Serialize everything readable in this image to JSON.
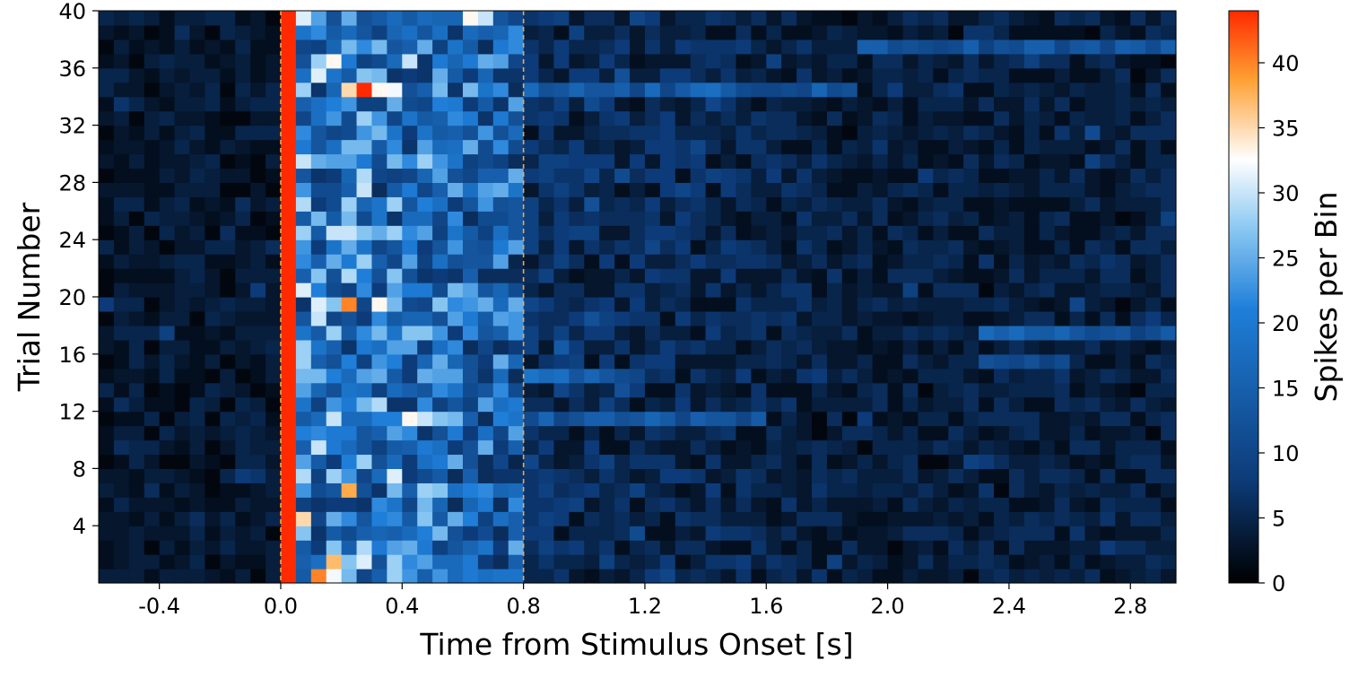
{
  "chart_data": {
    "type": "heatmap",
    "title": "",
    "xlabel": "Time from Stimulus Onset [s]",
    "ylabel": "Trial Number",
    "colorbar_label": "Spikes per Bin",
    "colormap": [
      "#000000",
      "#0d3b78",
      "#1f7fd9",
      "#8cc8f2",
      "#ffffff",
      "#ffa033",
      "#ff2a00"
    ],
    "xlim": [
      -0.6,
      2.95
    ],
    "ylim": [
      0,
      40
    ],
    "clim": [
      0,
      44
    ],
    "bin_width_s": 0.05,
    "n_trials": 40,
    "xticks": [
      -0.4,
      0.0,
      0.4,
      0.8,
      1.2,
      1.6,
      2.0,
      2.4,
      2.8
    ],
    "xtick_labels": [
      "-0.4",
      "0.0",
      "0.4",
      "0.8",
      "1.2",
      "1.6",
      "2.0",
      "2.4",
      "2.8"
    ],
    "yticks": [
      4,
      8,
      12,
      16,
      20,
      24,
      28,
      32,
      36,
      40
    ],
    "ytick_labels": [
      "4",
      "8",
      "12",
      "16",
      "20",
      "24",
      "28",
      "32",
      "36",
      "40"
    ],
    "cbar_ticks": [
      0,
      5,
      10,
      15,
      20,
      25,
      30,
      35,
      40
    ],
    "cbar_tick_labels": [
      "0",
      "5",
      "10",
      "15",
      "20",
      "25",
      "30",
      "35",
      "40"
    ],
    "stimulus_onset_s": 0.0,
    "stimulus_offset_s": 0.8,
    "onset_column_value": 44,
    "onset_column_range": [
      0.0,
      0.05
    ],
    "profile": {
      "baseline": 3,
      "peak_window_s": [
        0.05,
        0.8
      ],
      "peak_rate": 19,
      "late_rate": 6,
      "decay_end_s": 1.8
    },
    "hotspots": [
      {
        "t": 0.1,
        "trial": 1,
        "value": 40
      },
      {
        "t": 0.15,
        "trial": 2,
        "value": 37
      },
      {
        "t": 0.15,
        "trial": 1,
        "value": 32
      },
      {
        "t": 0.25,
        "trial": 2,
        "value": 31
      },
      {
        "t": 0.2,
        "trial": 7,
        "value": 38
      },
      {
        "t": 0.35,
        "trial": 8,
        "value": 31
      },
      {
        "t": 0.4,
        "trial": 12,
        "value": 33
      },
      {
        "t": 0.45,
        "trial": 12,
        "value": 30
      },
      {
        "t": 0.2,
        "trial": 20,
        "value": 40
      },
      {
        "t": 0.3,
        "trial": 20,
        "value": 33
      },
      {
        "t": 0.25,
        "trial": 35,
        "value": 44
      },
      {
        "t": 0.3,
        "trial": 35,
        "value": 33
      },
      {
        "t": 0.2,
        "trial": 35,
        "value": 35
      },
      {
        "t": 0.6,
        "trial": 40,
        "value": 33
      },
      {
        "t": 0.65,
        "trial": 40,
        "value": 30
      }
    ],
    "late_bursts": [
      {
        "trial": 38,
        "t_range": [
          1.9,
          2.95
        ],
        "value": 13
      },
      {
        "trial": 35,
        "t_range": [
          0.8,
          1.9
        ],
        "value": 15
      },
      {
        "trial": 18,
        "t_range": [
          2.3,
          2.95
        ],
        "value": 14
      },
      {
        "trial": 16,
        "t_range": [
          2.3,
          2.6
        ],
        "value": 12
      },
      {
        "trial": 15,
        "t_range": [
          0.8,
          1.2
        ],
        "value": 16
      },
      {
        "trial": 12,
        "t_range": [
          0.8,
          1.6
        ],
        "value": 14
      }
    ]
  }
}
